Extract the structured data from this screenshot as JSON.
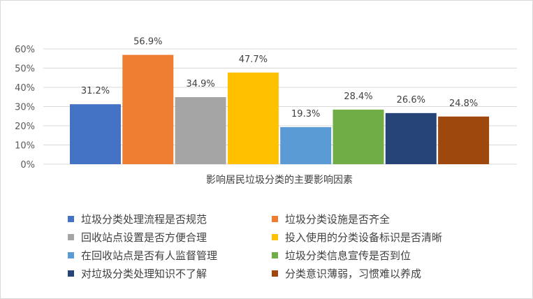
{
  "chart_data": {
    "type": "bar",
    "xlabel": "影响居民垃圾分类的主要影响因素",
    "ylim": [
      0,
      60
    ],
    "ytick_labels": [
      "0%",
      "10%",
      "20%",
      "30%",
      "40%",
      "50%",
      "60%"
    ],
    "grid": true,
    "legend_position": "bottom",
    "series": [
      {
        "name": "垃圾分类处理流程是否规范",
        "value": 31.2,
        "label": "31.2%",
        "color": "#4472C4"
      },
      {
        "name": "垃圾分类设施是否齐全",
        "value": 56.9,
        "label": "56.9%",
        "color": "#ED7D31"
      },
      {
        "name": "回收站点设置是否方便合理",
        "value": 34.9,
        "label": "34.9%",
        "color": "#A5A5A5"
      },
      {
        "name": "投入使用的分类设备标识是否清晰",
        "value": 47.7,
        "label": "47.7%",
        "color": "#FFC000"
      },
      {
        "name": "在回收站点是否有人监督管理",
        "value": 19.3,
        "label": "19.3%",
        "color": "#5B9BD5"
      },
      {
        "name": "垃圾分类信息宣传是否到位",
        "value": 28.4,
        "label": "28.4%",
        "color": "#70AD47"
      },
      {
        "name": "对垃圾分类处理知识不了解",
        "value": 26.6,
        "label": "26.6%",
        "color": "#264478"
      },
      {
        "name": "分类意识薄弱，习惯难以养成",
        "value": 24.8,
        "label": "24.8%",
        "color": "#9E480E"
      }
    ]
  }
}
